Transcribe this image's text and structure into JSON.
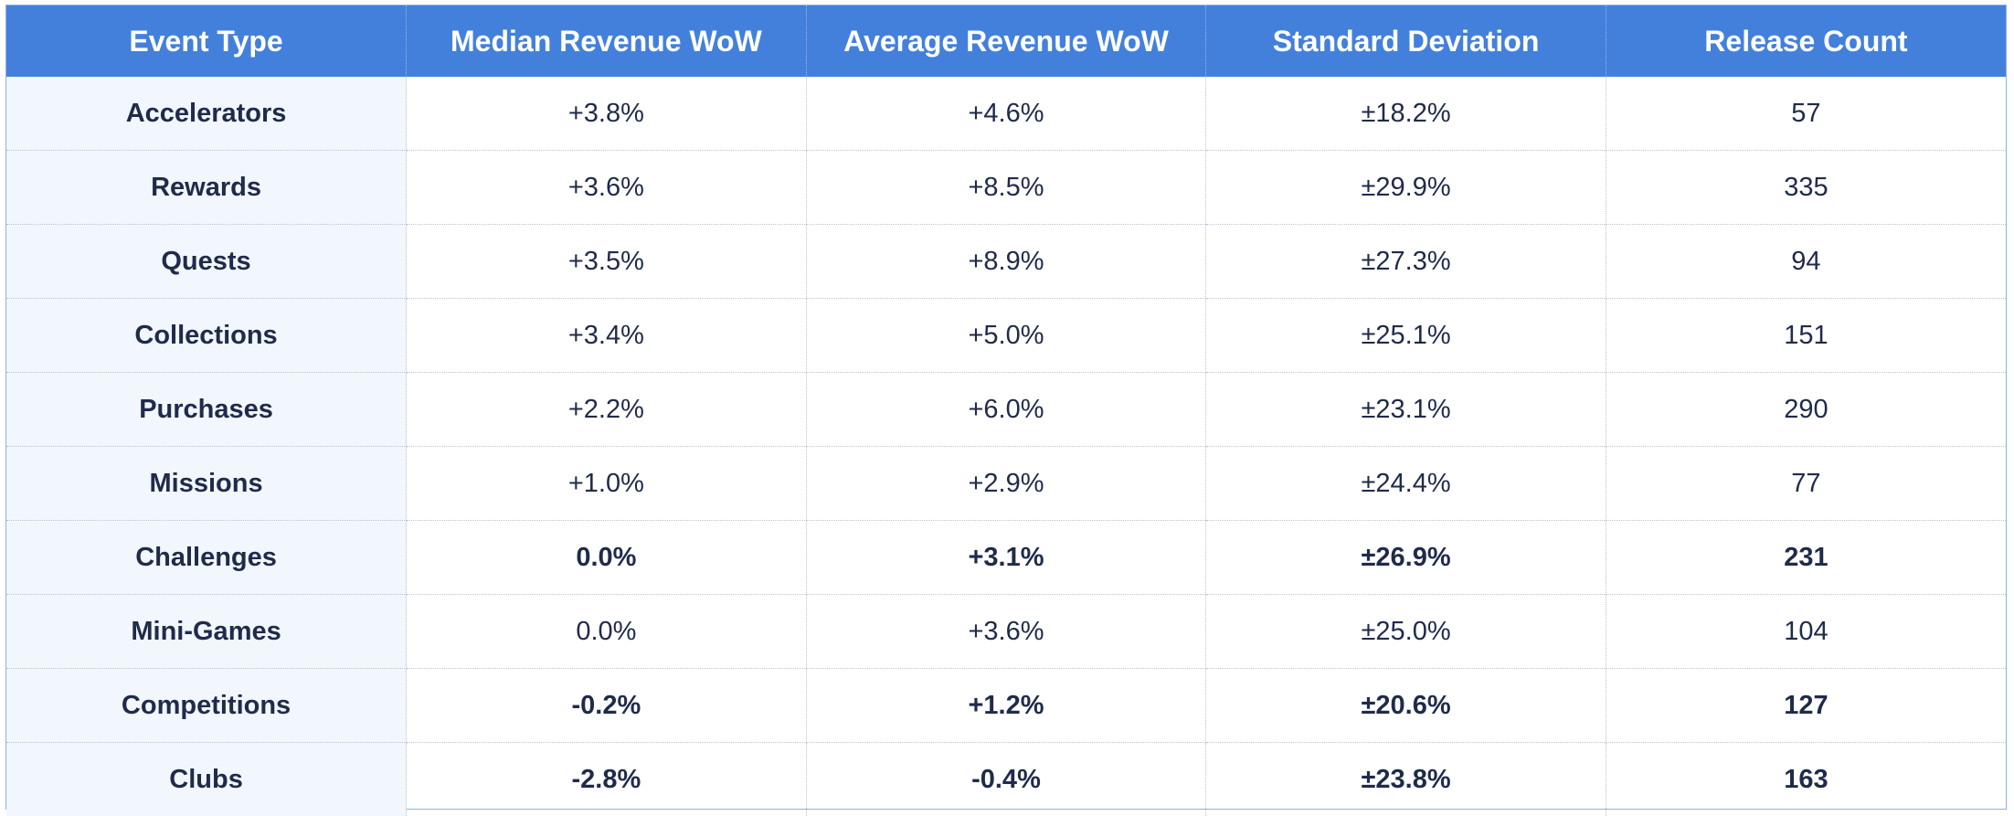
{
  "chart_data": {
    "type": "table",
    "columns": [
      "Event Type",
      "Median Revenue WoW",
      "Average Revenue WoW",
      "Standard Deviation",
      "Release Count"
    ],
    "rows": [
      {
        "event_type": "Accelerators",
        "median": "+3.8%",
        "average": "+4.6%",
        "std_dev": "±18.2%",
        "count": "57",
        "bold": false
      },
      {
        "event_type": "Rewards",
        "median": "+3.6%",
        "average": "+8.5%",
        "std_dev": "±29.9%",
        "count": "335",
        "bold": false
      },
      {
        "event_type": "Quests",
        "median": "+3.5%",
        "average": "+8.9%",
        "std_dev": "±27.3%",
        "count": "94",
        "bold": false
      },
      {
        "event_type": "Collections",
        "median": "+3.4%",
        "average": "+5.0%",
        "std_dev": "±25.1%",
        "count": "151",
        "bold": false
      },
      {
        "event_type": "Purchases",
        "median": "+2.2%",
        "average": "+6.0%",
        "std_dev": "±23.1%",
        "count": "290",
        "bold": false
      },
      {
        "event_type": "Missions",
        "median": "+1.0%",
        "average": "+2.9%",
        "std_dev": "±24.4%",
        "count": "77",
        "bold": false
      },
      {
        "event_type": "Challenges",
        "median": "0.0%",
        "average": "+3.1%",
        "std_dev": "±26.9%",
        "count": "231",
        "bold": true
      },
      {
        "event_type": "Mini-Games",
        "median": "0.0%",
        "average": "+3.6%",
        "std_dev": "±25.0%",
        "count": "104",
        "bold": false
      },
      {
        "event_type": "Competitions",
        "median": "-0.2%",
        "average": "+1.2%",
        "std_dev": "±20.6%",
        "count": "127",
        "bold": true
      },
      {
        "event_type": "Clubs",
        "median": "-2.8%",
        "average": "-0.4%",
        "std_dev": "±23.8%",
        "count": "163",
        "bold": true
      }
    ]
  },
  "colors": {
    "header_bg": "#4380dc",
    "header_text": "#ffffff",
    "first_col_bg": "#f2f6fd",
    "body_text": "#1f2b4a",
    "grid_line": "#b9c3d0"
  }
}
